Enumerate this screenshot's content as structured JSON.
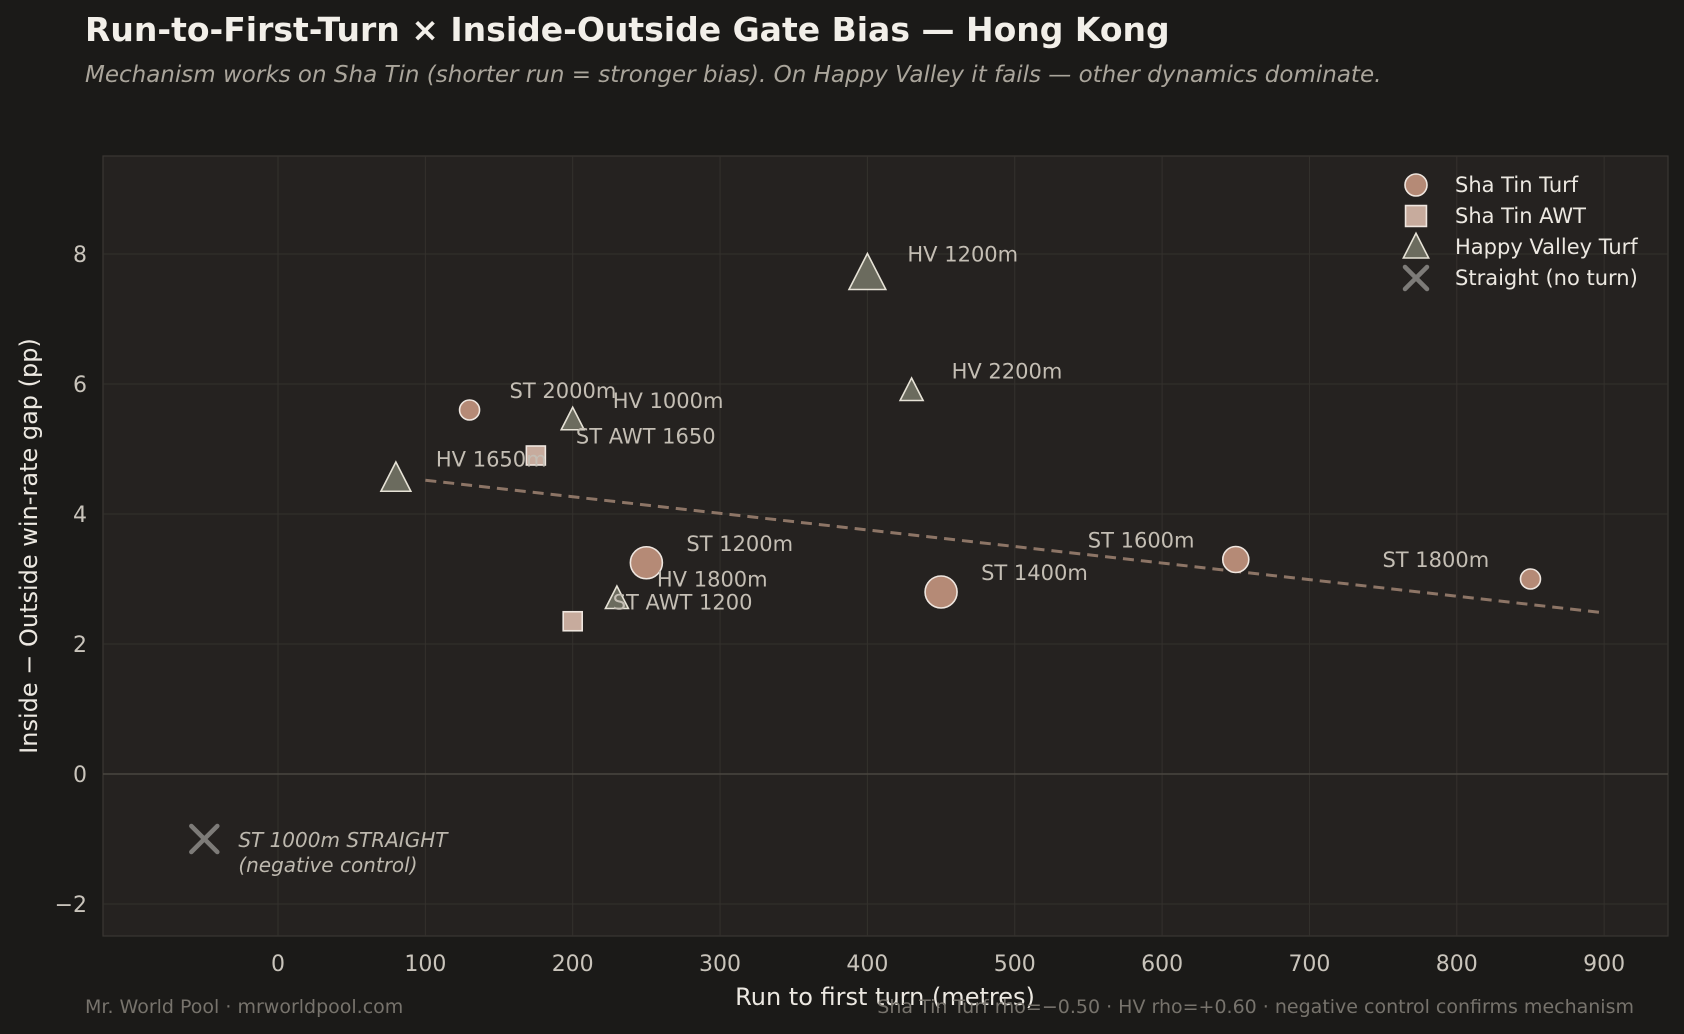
{
  "title": "Run-to-First-Turn × Inside-Outside Gate Bias — Hong Kong",
  "subtitle": "Mechanism works on Sha Tin (shorter run = stronger bias). On Happy Valley it fails — other dynamics dominate.",
  "footer": {
    "left": "Mr. World Pool · mrworldpool.com",
    "right": "Sha Tin Turf rho=−0.50 · HV rho=+0.60 · negative control confirms mechanism"
  },
  "colors": {
    "background": "#1b1a18",
    "plot_bg": "#252220",
    "sha_tin_turf": "#b58a76",
    "sha_tin_awt": "#c7ab9d",
    "happy_valley_turf": "#6b6b5e",
    "straight": "#7d7b78",
    "trend": "#8d7566"
  },
  "chart_data": {
    "type": "scatter",
    "xlabel": "Run to first turn (metres)",
    "ylabel": "Inside − Outside win-rate gap (pp)",
    "xlim": [
      -120,
      950
    ],
    "ylim": [
      -2.5,
      9.5
    ],
    "xticks": [
      0,
      100,
      200,
      300,
      400,
      500,
      600,
      700,
      800,
      900
    ],
    "yticks": [
      -2,
      0,
      2,
      4,
      6,
      8
    ],
    "grid": true,
    "legend_position": "top-right",
    "series": [
      {
        "name": "Sha Tin Turf",
        "marker": "circle",
        "color": "#b58a76",
        "points": [
          {
            "x": 130,
            "y": 5.6,
            "label": "ST 2000m",
            "size": "small"
          },
          {
            "x": 250,
            "y": 3.25,
            "label": "ST 1200m",
            "size": "large"
          },
          {
            "x": 450,
            "y": 2.8,
            "label": "ST 1400m",
            "size": "large"
          },
          {
            "x": 650,
            "y": 3.3,
            "label": "ST 1600m",
            "size": "medium"
          },
          {
            "x": 850,
            "y": 3.0,
            "label": "ST 1800m",
            "size": "small"
          }
        ]
      },
      {
        "name": "Sha Tin AWT",
        "marker": "square",
        "color": "#c7ab9d",
        "points": [
          {
            "x": 175,
            "y": 4.9,
            "label": "ST AWT 1650",
            "size": "small"
          },
          {
            "x": 200,
            "y": 2.35,
            "label": "ST AWT 1200",
            "size": "small"
          }
        ]
      },
      {
        "name": "Happy Valley Turf",
        "marker": "triangle",
        "color": "#6b6b5e",
        "points": [
          {
            "x": 80,
            "y": 4.55,
            "label": "HV 1650m",
            "size": "medium"
          },
          {
            "x": 200,
            "y": 5.45,
            "label": "HV 1000m",
            "size": "small"
          },
          {
            "x": 230,
            "y": 2.7,
            "label": "HV 1800m",
            "size": "small"
          },
          {
            "x": 400,
            "y": 7.7,
            "label": "HV 1200m",
            "size": "large"
          },
          {
            "x": 430,
            "y": 5.9,
            "label": "HV 2200m",
            "size": "small"
          }
        ]
      },
      {
        "name": "Straight (no turn)",
        "marker": "x",
        "color": "#7d7b78",
        "points": [
          {
            "x": -50,
            "y": -1.0,
            "label": "ST 1000m STRAIGHT",
            "label2": "(negative control)",
            "size": "medium"
          }
        ]
      }
    ],
    "trend": {
      "x": [
        100,
        900
      ],
      "y": [
        4.52,
        2.48
      ],
      "style": "dashed"
    }
  }
}
